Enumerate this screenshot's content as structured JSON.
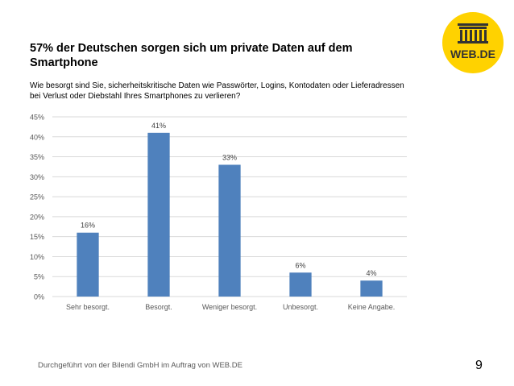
{
  "title": "57% der Deutschen sorgen sich um private Daten auf dem Smartphone",
  "subtitle": "Wie besorgt sind Sie, sicherheitskritische Daten wie Passwörter, Logins, Kontodaten oder Lieferadressen bei Verlust oder Diebstahl Ihres Smartphones zu verlieren?",
  "logo": {
    "text": "WEB.DE",
    "icon": "brandenburg-gate-icon",
    "color": "#FFD200",
    "text_color": "#333333"
  },
  "footer": "Durchgeführt von der Bilendi GmbH im Auftrag von WEB.DE",
  "page_number": "9",
  "chart_data": {
    "type": "bar",
    "title": "",
    "xlabel": "",
    "ylabel": "",
    "categories": [
      "Sehr besorgt.",
      "Besorgt.",
      "Weniger besorgt.",
      "Unbesorgt.",
      "Keine Angabe."
    ],
    "values": [
      16,
      41,
      33,
      6,
      4
    ],
    "value_labels": [
      "16%",
      "41%",
      "33%",
      "6%",
      "4%"
    ],
    "ylim": [
      0,
      45
    ],
    "yticks": [
      0,
      5,
      10,
      15,
      20,
      25,
      30,
      35,
      40,
      45
    ],
    "ytick_labels": [
      "0%",
      "5%",
      "10%",
      "15%",
      "20%",
      "25%",
      "30%",
      "35%",
      "40%",
      "45%"
    ],
    "grid": true,
    "bar_color": "#4F81BD"
  }
}
